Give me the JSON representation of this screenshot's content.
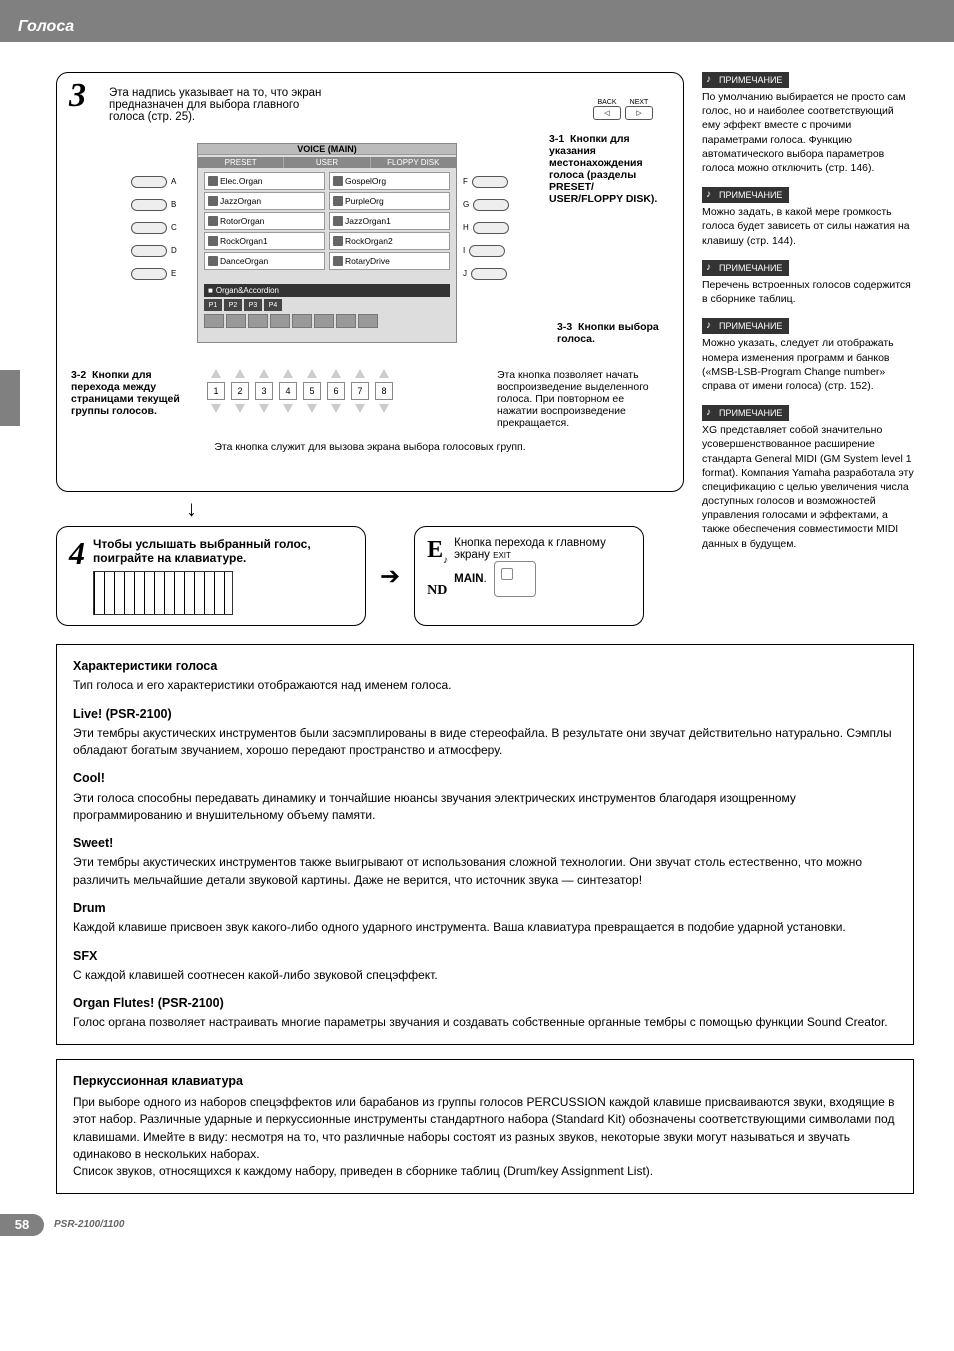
{
  "header": {
    "title": "Голоса"
  },
  "step3": {
    "num": "3",
    "intro": "Эта надпись указывает на то, что экран предназначен для выбора главного голоса (стр. 25).",
    "screen_title": "VOICE (MAIN)",
    "tabs": [
      "PRESET",
      "USER",
      "FLOPPY DISK"
    ],
    "voices_left": [
      "Elec.Organ",
      "JazzOrgan",
      "RotorOrgan",
      "RockOrgan1",
      "DanceOrgan"
    ],
    "voices_right": [
      "GospelOrg",
      "PurpleOrg",
      "JazzOrgan1",
      "RockOrgan2",
      "RotaryDrive"
    ],
    "category": "Organ&Accordion",
    "pages": [
      "P1",
      "P2",
      "P3",
      "P4"
    ],
    "side_left": [
      "A",
      "B",
      "C",
      "D",
      "E"
    ],
    "side_right": [
      "F",
      "G",
      "H",
      "I",
      "J"
    ],
    "back": "BACK",
    "next": "NEXT",
    "label_3_1_num": "3-1",
    "label_3_1": "Кнопки для указания местонахождения голоса (разделы PRESET/ USER/FLOPPY DISK).",
    "label_3_2_num": "3-2",
    "label_3_2": "Кнопки для перехода между страницами текущей группы голосов.",
    "label_3_3_num": "3-3",
    "label_3_3": "Кнопки выбора голоса.",
    "numbers": [
      "1",
      "2",
      "3",
      "4",
      "5",
      "6",
      "7",
      "8"
    ],
    "play_note": "Эта кнопка позволяет начать воспроизведение выделенного голоса. При повторном ее нажатии воспроизведение прекращается.",
    "bottom_caption": "Эта кнопка служит для вызова экрана выбора голосовых групп."
  },
  "step4": {
    "num": "4",
    "text": "Чтобы услышать выбранный голос, поиграйте на клавиатуре.",
    "end_mark": "E",
    "end_sub": "ND",
    "end_text": "Кнопка перехода к главному экрану ",
    "exit": "EXIT",
    "main": "MAIN"
  },
  "notes": [
    "По умолчанию выбирается не просто сам голос, но и наиболее соответствующий ему эффект вместе с прочими параметрами голоса. Функцию автоматического выбора параметров голоса можно отключить (стр. 146).",
    "Можно задать, в какой мере громкость голоса будет зависеть от силы нажатия на клавишу (стр. 144).",
    "Перечень встроенных голосов содержится в сборнике таблиц.",
    "Можно указать, следует ли отображать номера изменения программ и банков («MSB-LSB-Program Change number» справа от имени голоса) (стр. 152).",
    "XG представляет собой значительно усовершенствованное расширение стандарта General MIDI (GM System level 1 format). Компания Yamaha разработала эту спецификацию с целью увеличения числа доступных голосов и возможностей управления голосами и эффектами, а также обеспечения совместимости MIDI данных в будущем."
  ],
  "note_label": "ПРИМЕЧАНИЕ",
  "characteristics": {
    "title": "Характеристики голоса",
    "intro": "Тип голоса и его характеристики отображаются над именем голоса.",
    "items": [
      {
        "h": "Live! (PSR-2100)",
        "t": "Эти тембры акустических инструментов были засэмплированы в виде стереофайла. В результате они звучат действительно натурально. Сэмплы обладают богатым звучанием, хорошо передают пространство и атмосферу."
      },
      {
        "h": "Cool!",
        "t": "Эти голоса способны передавать динамику и тончайшие нюансы звучания электрических инструментов благодаря изощренному программированию и внушительному объему памяти."
      },
      {
        "h": "Sweet!",
        "t": "Эти тембры акустических инструментов также выигрывают от использования сложной технологии. Они звучат столь естественно, что можно различить мельчайшие детали звуковой картины. Даже не верится, что источник звука — синтезатор!"
      },
      {
        "h": "Drum",
        "t": "Каждой клавише присвоен звук какого-либо одного ударного инструмента. Ваша клавиатура превращается в подобие ударной установки."
      },
      {
        "h": "SFX",
        "t": "С каждой клавишей соотнесен какой-либо звуковой спецэффект."
      },
      {
        "h": "Organ Flutes! (PSR-2100)",
        "t": "Голос органа позволяет настраивать многие параметры звучания и создавать собственные органные тембры с помощью функции Sound Creator."
      }
    ]
  },
  "percussion": {
    "title": "Перкуссионная клавиатура",
    "body": "При выборе одного из наборов спецэффектов или барабанов из группы голосов PERCUSSION каждой клавише присваиваются звуки, входящие в этот набор. Различные ударные и перкуссионные инструменты стандартного набора (Standard Kit) обозначены соответствующими символами под клавишами. Имейте в виду: несмотря на то, что различные наборы состоят из разных звуков, некоторые звуки могут называться и звучать одинаково в нескольких наборах.",
    "body2": "Список звуков, относящихся к каждому набору, приведен в сборнике таблиц (Drum/key Assignment List)."
  },
  "footer": {
    "page": "58",
    "model": "PSR-2100/1100"
  },
  "colors": {
    "gray_bar": "#808080",
    "screen_bg": "#dddddd",
    "screen_dark": "#444444",
    "note_bg": "#333333"
  }
}
